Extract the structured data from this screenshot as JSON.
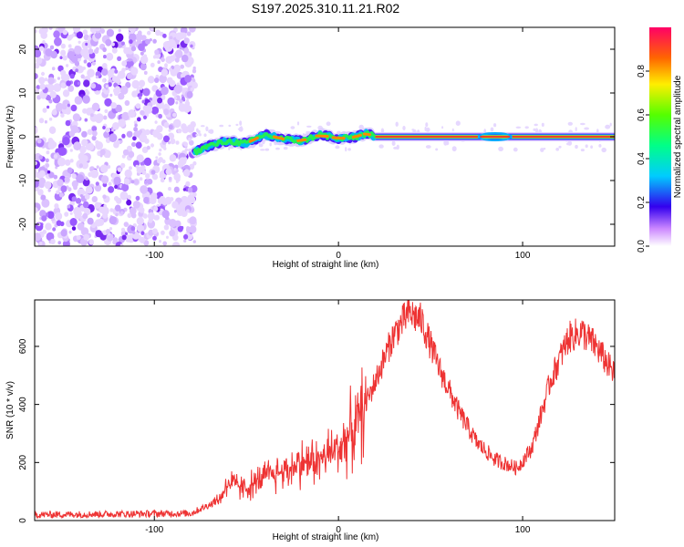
{
  "title": "S197.2025.310.11.21.R02",
  "chart_data": [
    {
      "type": "heatmap",
      "xlabel": "Height of straight line (km)",
      "ylabel": "Frequency (Hz)",
      "xlim": [
        -165,
        150
      ],
      "ylim": [
        -25,
        25
      ],
      "xticks": [
        -100,
        0,
        100
      ],
      "yticks": [
        -20,
        -10,
        0,
        10,
        20
      ],
      "colorbar": {
        "label": "Normalized spectral amplitude",
        "range": [
          0,
          1
        ],
        "ticks": [
          0.0,
          0.2,
          0.4,
          0.6,
          0.8
        ]
      },
      "noise_region_x": [
        -165,
        -78
      ],
      "signal_track": [
        {
          "x": -78,
          "y": -3.5
        },
        {
          "x": -70,
          "y": -2
        },
        {
          "x": -60,
          "y": -1
        },
        {
          "x": -50,
          "y": -1.5
        },
        {
          "x": -40,
          "y": 0.5
        },
        {
          "x": -30,
          "y": -0.5
        },
        {
          "x": -20,
          "y": -1
        },
        {
          "x": -10,
          "y": 0.5
        },
        {
          "x": 0,
          "y": -0.5
        },
        {
          "x": 10,
          "y": 0
        },
        {
          "x": 15,
          "y": 0.8
        },
        {
          "x": 20,
          "y": 0
        },
        {
          "x": 150,
          "y": 0
        }
      ]
    },
    {
      "type": "line",
      "xlabel": "Height of straight line (km)",
      "ylabel": "SNR (10 * v/v)",
      "xlim": [
        -165,
        150
      ],
      "ylim": [
        0,
        760
      ],
      "xticks": [
        -100,
        0,
        100
      ],
      "yticks": [
        0,
        200,
        400,
        600
      ],
      "color": "#ee3333",
      "series_envelope": [
        {
          "x": -165,
          "y": 20
        },
        {
          "x": -80,
          "y": 25
        },
        {
          "x": -65,
          "y": 70
        },
        {
          "x": -60,
          "y": 130
        },
        {
          "x": -50,
          "y": 110
        },
        {
          "x": -40,
          "y": 150
        },
        {
          "x": -30,
          "y": 170
        },
        {
          "x": -20,
          "y": 200
        },
        {
          "x": -10,
          "y": 210
        },
        {
          "x": 0,
          "y": 250
        },
        {
          "x": 10,
          "y": 330
        },
        {
          "x": 20,
          "y": 480
        },
        {
          "x": 30,
          "y": 640
        },
        {
          "x": 38,
          "y": 715
        },
        {
          "x": 45,
          "y": 690
        },
        {
          "x": 55,
          "y": 520
        },
        {
          "x": 65,
          "y": 380
        },
        {
          "x": 75,
          "y": 270
        },
        {
          "x": 85,
          "y": 210
        },
        {
          "x": 97,
          "y": 180
        },
        {
          "x": 105,
          "y": 250
        },
        {
          "x": 115,
          "y": 480
        },
        {
          "x": 125,
          "y": 630
        },
        {
          "x": 132,
          "y": 650
        },
        {
          "x": 140,
          "y": 600
        },
        {
          "x": 150,
          "y": 500
        }
      ]
    }
  ]
}
